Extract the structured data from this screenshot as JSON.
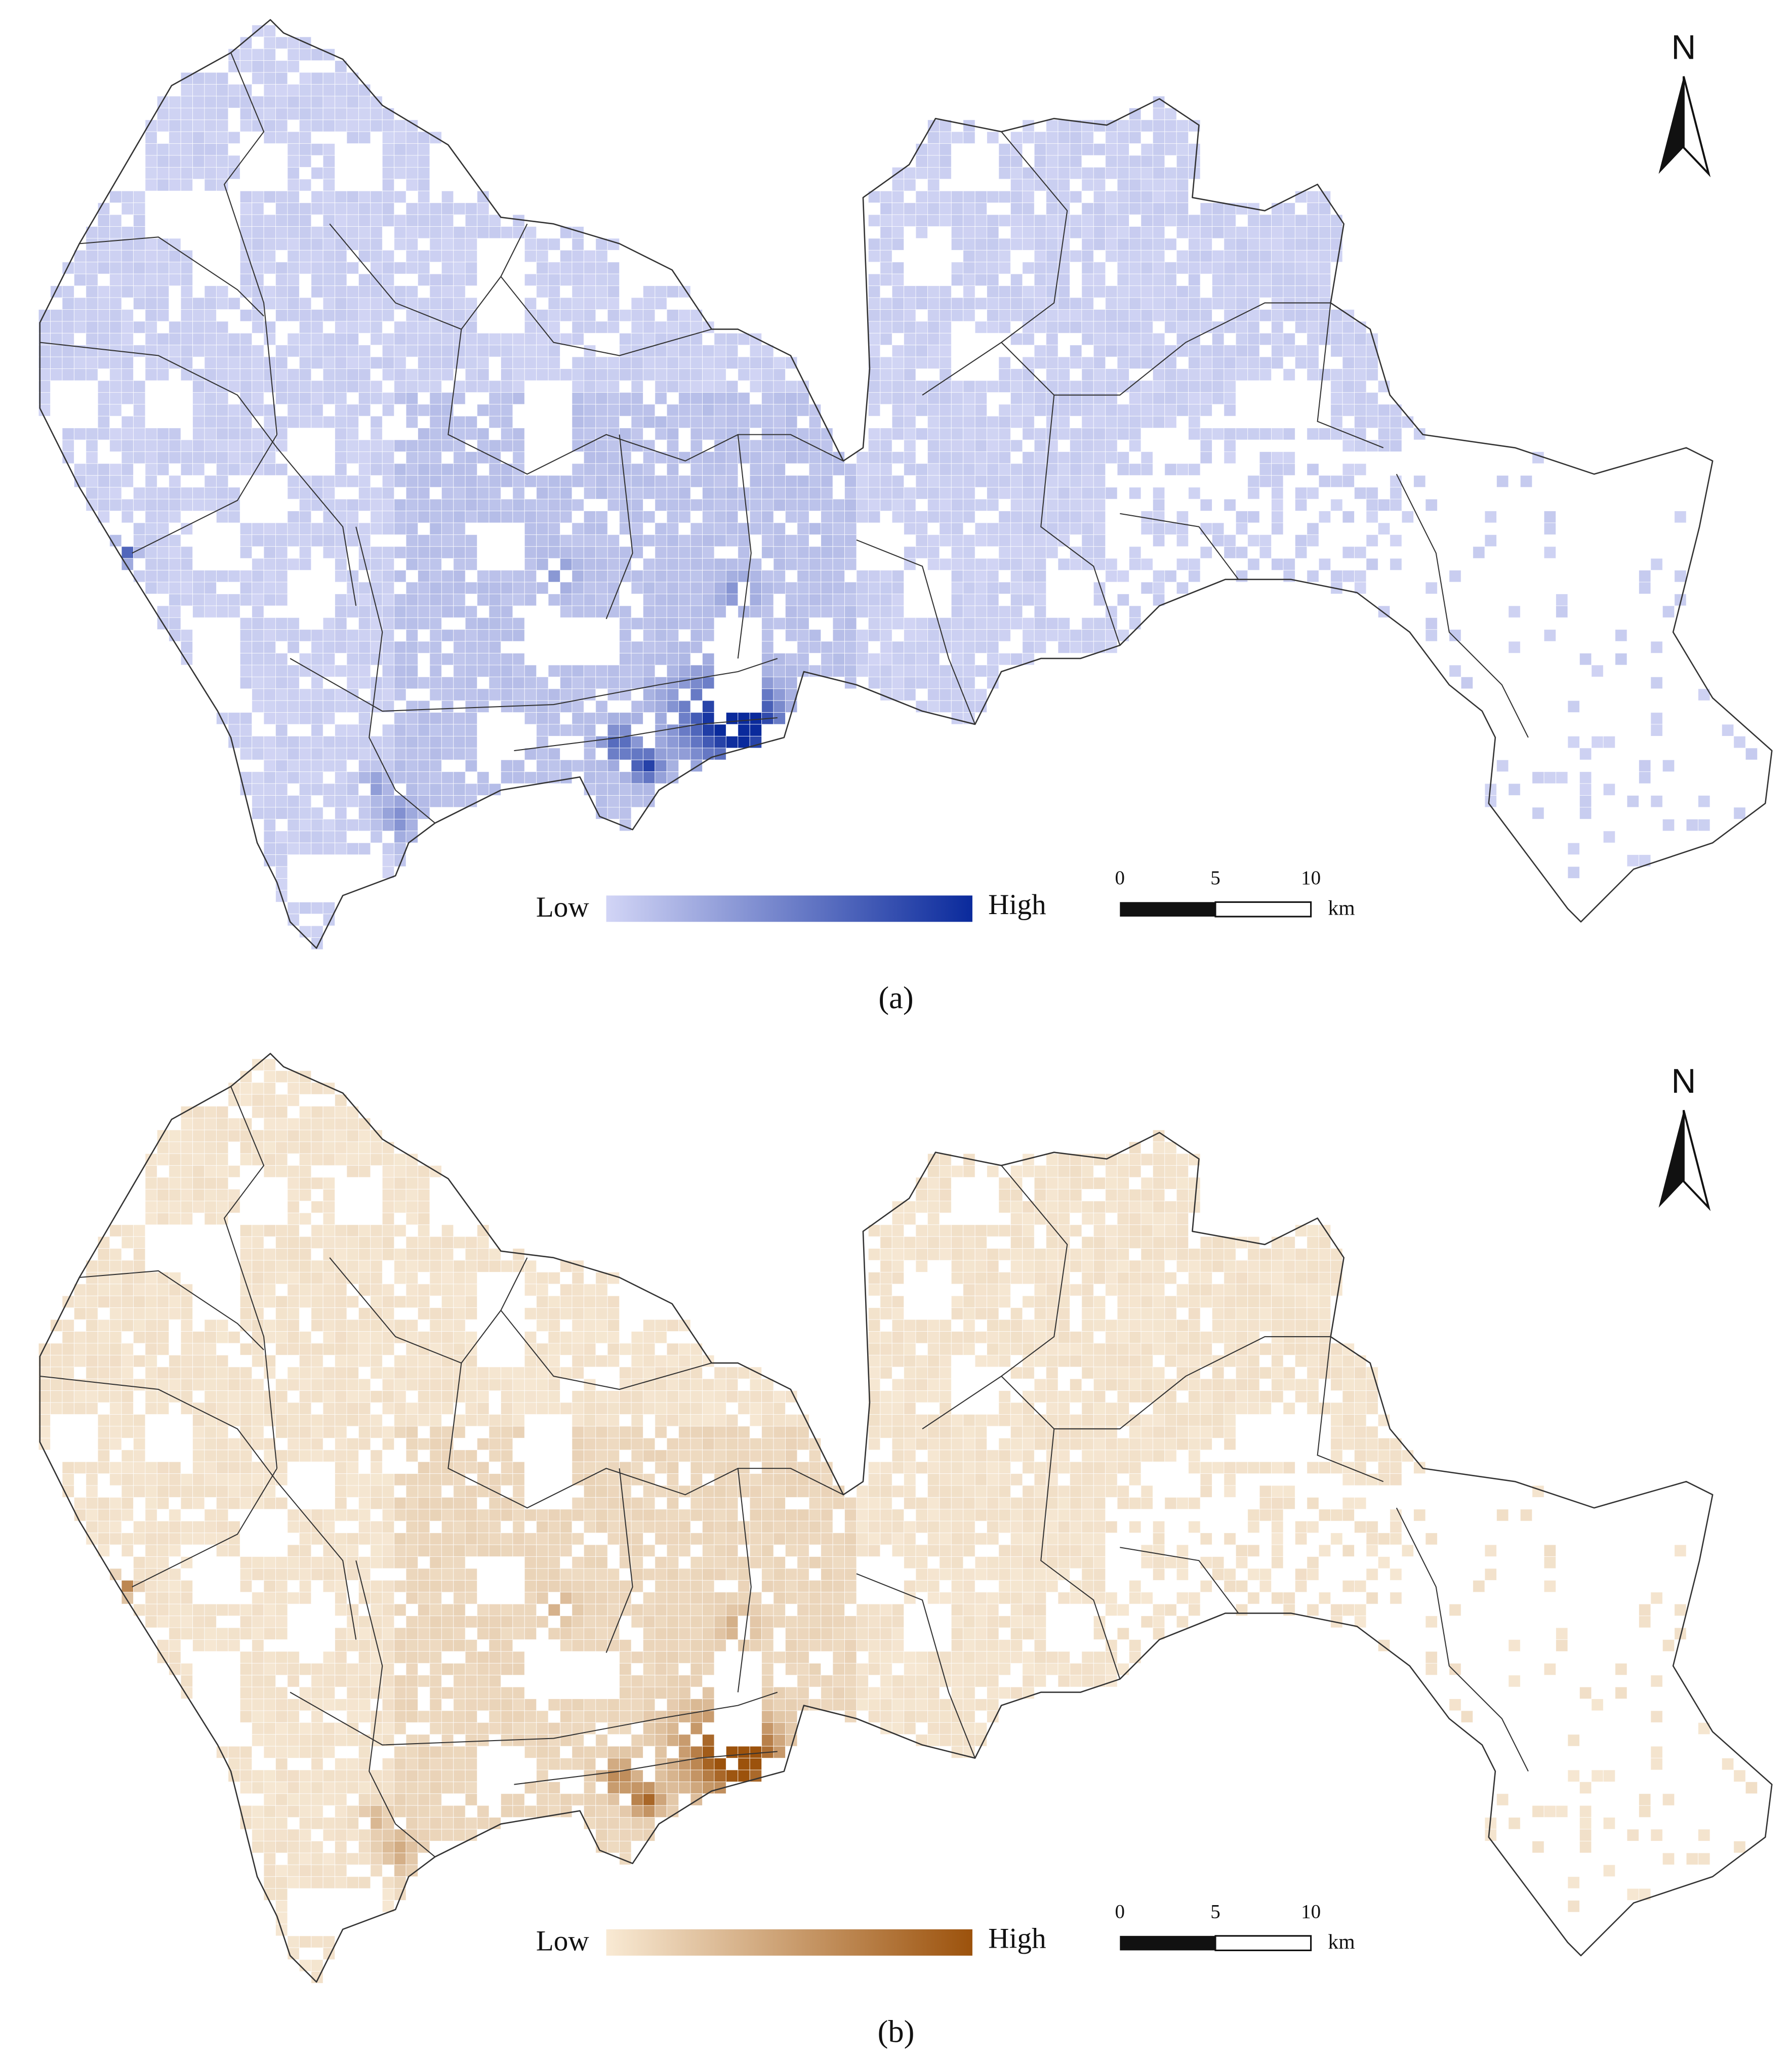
{
  "panels": [
    {
      "north": "N",
      "legend": {
        "low": "Low",
        "high": "High",
        "colors": [
          "#cdd0f5",
          "#0a2a9c"
        ]
      },
      "scale": {
        "ticks": [
          0,
          5,
          10
        ],
        "unit": "km"
      },
      "caption": "(a)"
    },
    {
      "north": "N",
      "legend": {
        "low": "Low",
        "high": "High",
        "colors": [
          "#f8e8cf",
          "#9c520c"
        ]
      },
      "scale": {
        "ticks": [
          0,
          5,
          10
        ],
        "unit": "km"
      },
      "caption": "(b)"
    }
  ]
}
